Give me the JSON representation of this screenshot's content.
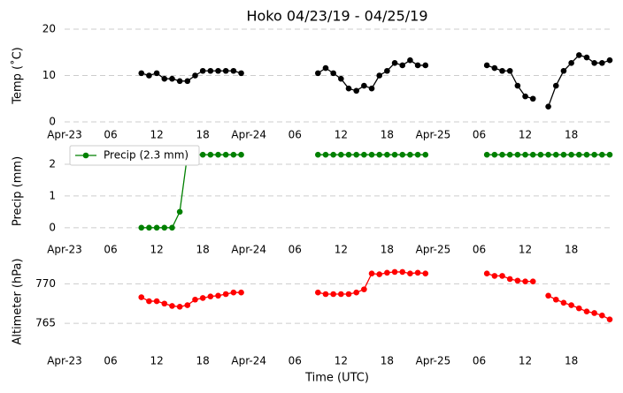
{
  "chart_data": [
    {
      "type": "line",
      "title": "Hoko 04/23/19 - 04/25/19",
      "ylabel": "Temp (˚C)",
      "x": [
        0,
        1,
        2,
        3,
        4,
        5,
        6,
        7,
        8,
        9,
        10,
        11,
        12,
        13,
        14,
        15,
        16,
        17,
        18,
        19,
        20,
        21,
        22,
        23,
        24,
        25,
        26,
        27,
        28,
        29,
        30,
        31,
        32,
        33,
        34,
        35,
        36,
        37,
        38,
        39,
        40,
        41,
        42,
        43,
        44,
        45,
        46,
        47,
        48,
        49,
        50,
        51,
        52,
        53,
        54,
        55,
        56,
        57,
        58,
        59,
        60,
        61,
        62,
        63,
        64,
        65,
        66,
        67,
        68,
        69,
        70,
        71
      ],
      "xlim": [
        0,
        71
      ],
      "xticks": [
        {
          "value": 0,
          "label": "Apr-23"
        },
        {
          "value": 6,
          "label": "06"
        },
        {
          "value": 12,
          "label": "12"
        },
        {
          "value": 18,
          "label": "18"
        },
        {
          "value": 24,
          "label": "Apr-24"
        },
        {
          "value": 30,
          "label": "06"
        },
        {
          "value": 36,
          "label": "12"
        },
        {
          "value": 42,
          "label": "18"
        },
        {
          "value": 48,
          "label": "Apr-25"
        },
        {
          "value": 54,
          "label": "06"
        },
        {
          "value": 60,
          "label": "12"
        },
        {
          "value": 66,
          "label": "18"
        }
      ],
      "ylim": [
        0,
        20
      ],
      "yticks": [
        0,
        10,
        20
      ],
      "grid": true,
      "series": [
        {
          "color": "#000000",
          "values": [
            null,
            null,
            null,
            null,
            null,
            null,
            null,
            null,
            null,
            null,
            10.5,
            10,
            10.5,
            9.3,
            9.3,
            8.8,
            8.8,
            10,
            11,
            11,
            11,
            11,
            11,
            10.5,
            null,
            null,
            null,
            null,
            null,
            null,
            null,
            null,
            null,
            10.5,
            11.6,
            10.5,
            9.3,
            7.2,
            6.7,
            7.8,
            7.2,
            10,
            11,
            12.7,
            12.2,
            13.3,
            12.2,
            12.2,
            null,
            null,
            null,
            null,
            null,
            null,
            null,
            12.2,
            11.6,
            11,
            11,
            7.8,
            5.5,
            5,
            null,
            3.3,
            7.8,
            11,
            12.7,
            14.4,
            13.9,
            12.7,
            12.7,
            13.3
          ]
        }
      ]
    },
    {
      "type": "line",
      "ylabel": "Precip (mm)",
      "x": [
        0,
        1,
        2,
        3,
        4,
        5,
        6,
        7,
        8,
        9,
        10,
        11,
        12,
        13,
        14,
        15,
        16,
        17,
        18,
        19,
        20,
        21,
        22,
        23,
        24,
        25,
        26,
        27,
        28,
        29,
        30,
        31,
        32,
        33,
        34,
        35,
        36,
        37,
        38,
        39,
        40,
        41,
        42,
        43,
        44,
        45,
        46,
        47,
        48,
        49,
        50,
        51,
        52,
        53,
        54,
        55,
        56,
        57,
        58,
        59,
        60,
        61,
        62,
        63,
        64,
        65,
        66,
        67,
        68,
        69,
        70,
        71
      ],
      "xlim": [
        0,
        71
      ],
      "xticks": [
        {
          "value": 0,
          "label": "Apr-23"
        },
        {
          "value": 6,
          "label": "06"
        },
        {
          "value": 12,
          "label": "12"
        },
        {
          "value": 18,
          "label": "18"
        },
        {
          "value": 24,
          "label": "Apr-24"
        },
        {
          "value": 30,
          "label": "06"
        },
        {
          "value": 36,
          "label": "12"
        },
        {
          "value": 42,
          "label": "18"
        },
        {
          "value": 48,
          "label": "Apr-25"
        },
        {
          "value": 54,
          "label": "06"
        },
        {
          "value": 60,
          "label": "12"
        },
        {
          "value": 66,
          "label": "18"
        }
      ],
      "ylim": [
        -0.2,
        2.5
      ],
      "yticks": [
        0,
        1,
        2
      ],
      "grid": true,
      "legend": "upper left",
      "series": [
        {
          "name": "Precip (2.3 mm)",
          "color": "#008000",
          "values": [
            null,
            null,
            null,
            null,
            null,
            null,
            null,
            null,
            null,
            null,
            0,
            0,
            0,
            0,
            0,
            0.5,
            2.3,
            2.3,
            2.3,
            2.3,
            2.3,
            2.3,
            2.3,
            2.3,
            null,
            null,
            null,
            null,
            null,
            null,
            null,
            null,
            null,
            2.3,
            2.3,
            2.3,
            2.3,
            2.3,
            2.3,
            2.3,
            2.3,
            2.3,
            2.3,
            2.3,
            2.3,
            2.3,
            2.3,
            2.3,
            null,
            null,
            null,
            null,
            null,
            null,
            null,
            2.3,
            2.3,
            2.3,
            2.3,
            2.3,
            2.3,
            2.3,
            2.3,
            2.3,
            2.3,
            2.3,
            2.3,
            2.3,
            2.3,
            2.3,
            2.3,
            2.3
          ]
        }
      ]
    },
    {
      "type": "line",
      "ylabel": "Altimeter (hPa)",
      "xlabel": "Time (UTC)",
      "x": [
        0,
        1,
        2,
        3,
        4,
        5,
        6,
        7,
        8,
        9,
        10,
        11,
        12,
        13,
        14,
        15,
        16,
        17,
        18,
        19,
        20,
        21,
        22,
        23,
        24,
        25,
        26,
        27,
        28,
        29,
        30,
        31,
        32,
        33,
        34,
        35,
        36,
        37,
        38,
        39,
        40,
        41,
        42,
        43,
        44,
        45,
        46,
        47,
        48,
        49,
        50,
        51,
        52,
        53,
        54,
        55,
        56,
        57,
        58,
        59,
        60,
        61,
        62,
        63,
        64,
        65,
        66,
        67,
        68,
        69,
        70,
        71
      ],
      "xlim": [
        0,
        71
      ],
      "xticks": [
        {
          "value": 0,
          "label": "Apr-23"
        },
        {
          "value": 6,
          "label": "06"
        },
        {
          "value": 12,
          "label": "12"
        },
        {
          "value": 18,
          "label": "18"
        },
        {
          "value": 24,
          "label": "Apr-24"
        },
        {
          "value": 30,
          "label": "06"
        },
        {
          "value": 36,
          "label": "12"
        },
        {
          "value": 42,
          "label": "18"
        },
        {
          "value": 48,
          "label": "Apr-25"
        },
        {
          "value": 54,
          "label": "06"
        },
        {
          "value": 60,
          "label": "12"
        },
        {
          "value": 66,
          "label": "18"
        }
      ],
      "ylim": [
        762,
        773.5
      ],
      "yticks": [
        765,
        770
      ],
      "grid": true,
      "series": [
        {
          "color": "#ff0000",
          "values": [
            null,
            null,
            null,
            null,
            null,
            null,
            null,
            null,
            null,
            null,
            768.3,
            767.8,
            767.8,
            767.5,
            767.2,
            767.1,
            767.3,
            768,
            768.2,
            768.4,
            768.5,
            768.7,
            768.9,
            768.9,
            null,
            null,
            null,
            null,
            null,
            null,
            null,
            null,
            null,
            768.9,
            768.7,
            768.7,
            768.7,
            768.7,
            768.9,
            769.3,
            771.3,
            771.2,
            771.4,
            771.5,
            771.5,
            771.3,
            771.4,
            771.3,
            null,
            null,
            null,
            null,
            null,
            null,
            null,
            771.3,
            771,
            771,
            770.6,
            770.4,
            770.3,
            770.3,
            null,
            768.5,
            768,
            767.6,
            767.3,
            766.9,
            766.5,
            766.3,
            766,
            765.5
          ]
        }
      ]
    }
  ]
}
